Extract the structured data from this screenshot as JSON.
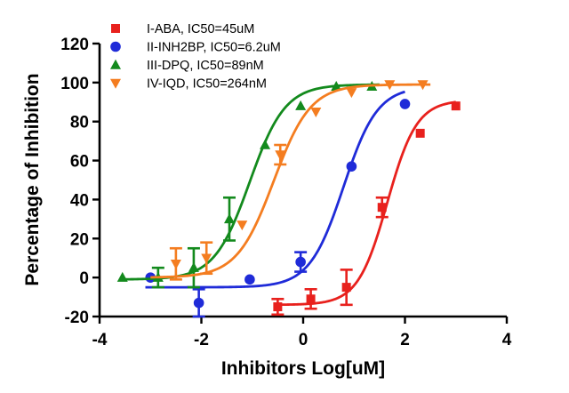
{
  "chart_data": {
    "type": "scatter",
    "title": "",
    "xlabel": "Inhibitors Log[uM]",
    "ylabel": "Percentage of Inhibition",
    "xlim": [
      -4,
      4
    ],
    "ylim": [
      -20,
      120
    ],
    "xticks": [
      -4,
      -2,
      0,
      2,
      4
    ],
    "yticks": [
      -20,
      0,
      20,
      40,
      60,
      80,
      100,
      120
    ],
    "grid": false,
    "legend_position": "top-left",
    "series": [
      {
        "name": "I-ABA, IC50=45uM",
        "color": "#e8211d",
        "marker": "square",
        "x": [
          -0.5,
          0.15,
          0.85,
          1.55,
          2.3,
          3.0
        ],
        "y": [
          -15,
          -11,
          -5,
          36,
          74,
          88
        ],
        "err": [
          4,
          5,
          9,
          5,
          0,
          0
        ],
        "fit": {
          "bottom": -14,
          "top": 91,
          "logIC50": 1.6532,
          "hill": 1.5,
          "xmin": -0.55,
          "xmax": 3.0
        }
      },
      {
        "name": "II-INH2BP, IC50=6.2uM",
        "color": "#1f2bd8",
        "marker": "circle",
        "x": [
          -3.0,
          -2.05,
          -1.05,
          -0.05,
          0.95,
          2.0
        ],
        "y": [
          0,
          -13,
          -1,
          8,
          57,
          89
        ],
        "err": [
          0,
          7,
          0,
          5,
          0,
          0
        ],
        "fit": {
          "bottom": -5,
          "top": 98,
          "logIC50": 0.7924,
          "hill": 1.3,
          "xmin": -3.1,
          "xmax": 2.0
        }
      },
      {
        "name": "III-DPQ, IC50=89nM",
        "color": "#138a1d",
        "marker": "triangle-up",
        "x": [
          -3.55,
          -2.85,
          -2.15,
          -1.45,
          -0.75,
          -0.05,
          0.65,
          1.35
        ],
        "y": [
          0,
          0,
          5,
          30,
          68,
          88,
          98,
          98
        ],
        "err": [
          0,
          5,
          10,
          11,
          0,
          0,
          0,
          0
        ],
        "fit": {
          "bottom": -1,
          "top": 99,
          "logIC50": -1.0506,
          "hill": 1.25,
          "xmin": -3.6,
          "xmax": 1.5
        }
      },
      {
        "name": "IV-IQD, IC50=264nM",
        "color": "#f47d20",
        "marker": "triangle-down",
        "x": [
          -2.5,
          -1.9,
          -1.2,
          -0.45,
          0.25,
          0.95,
          1.7,
          2.35
        ],
        "y": [
          7,
          10,
          27,
          63,
          85,
          95,
          99,
          99
        ],
        "err": [
          8,
          8,
          0,
          5,
          0,
          0,
          0,
          0
        ],
        "fit": {
          "bottom": 0,
          "top": 99,
          "logIC50": -0.5784,
          "hill": 1.2,
          "xmin": -3.0,
          "xmax": 2.5
        }
      }
    ]
  }
}
